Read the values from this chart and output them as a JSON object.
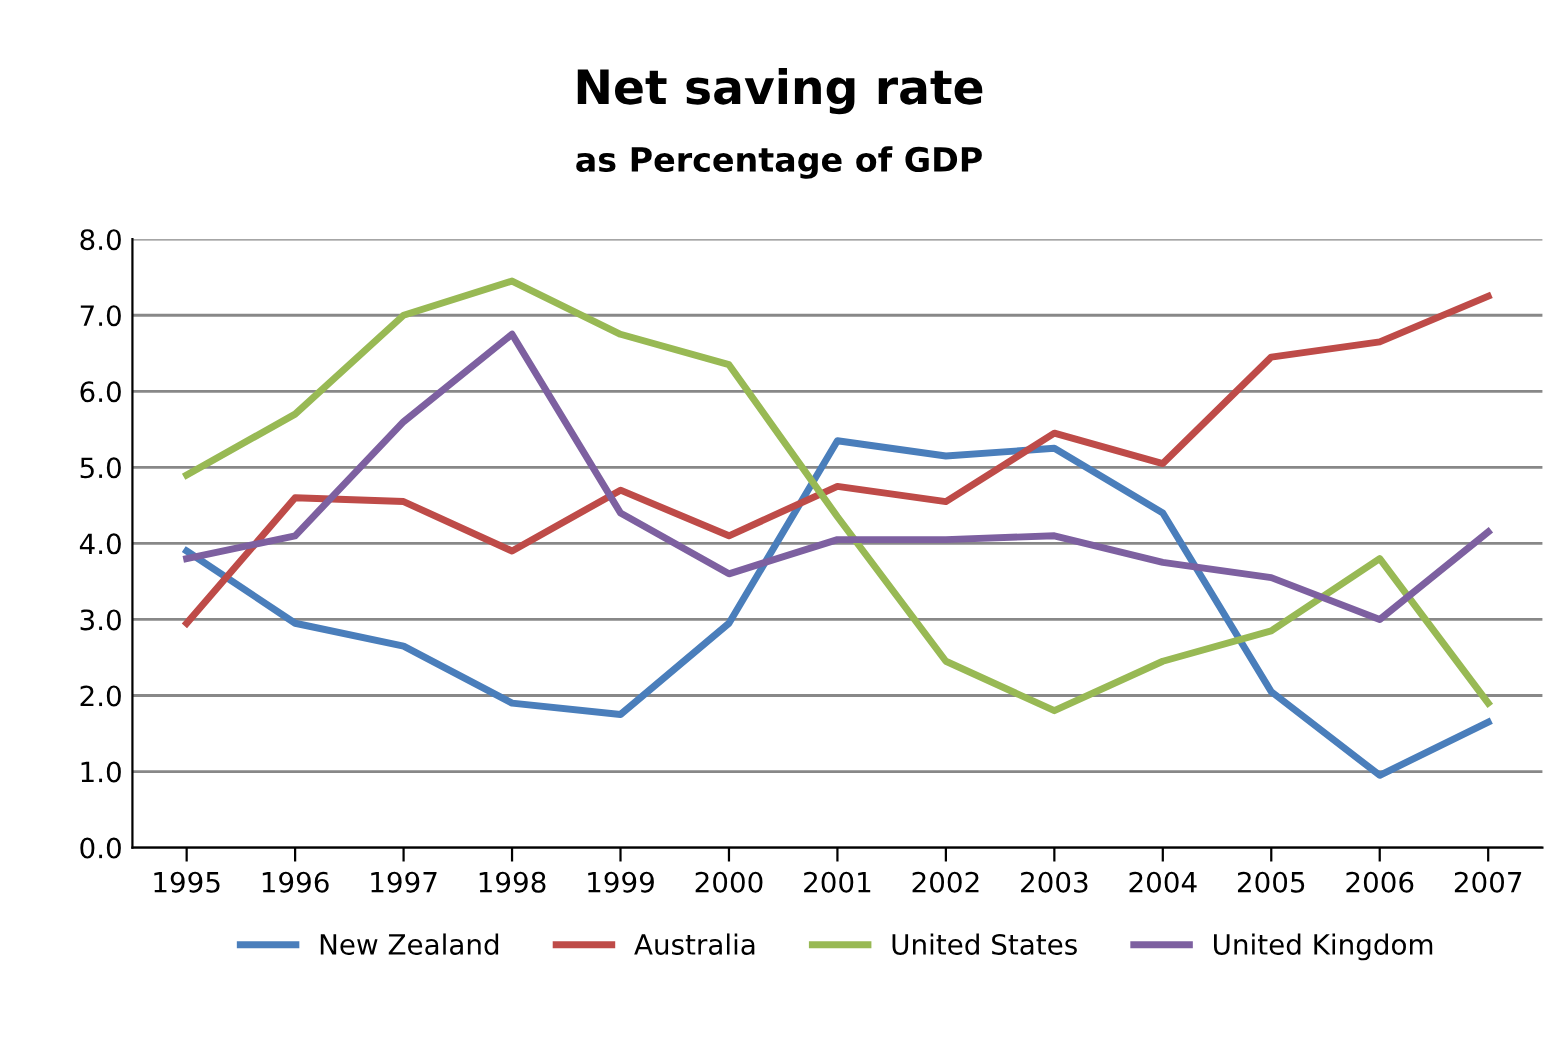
{
  "chart_data": {
    "type": "line",
    "title": "Net saving rate",
    "subtitle": "as Percentage of GDP",
    "categories": [
      "1995",
      "1996",
      "1997",
      "1998",
      "1999",
      "2000",
      "2001",
      "2002",
      "2003",
      "2004",
      "2005",
      "2006",
      "2007"
    ],
    "series": [
      {
        "name": "New Zealand",
        "color": "#4a7ebb",
        "values": [
          3.9,
          2.95,
          2.65,
          1.9,
          1.75,
          2.95,
          5.35,
          5.15,
          5.25,
          4.4,
          2.05,
          0.95,
          1.65
        ]
      },
      {
        "name": "Australia",
        "color": "#be4b48",
        "values": [
          2.95,
          4.6,
          4.55,
          3.9,
          4.7,
          4.1,
          4.75,
          4.55,
          5.45,
          5.05,
          6.45,
          6.65,
          7.25
        ]
      },
      {
        "name": "United States",
        "color": "#98b954",
        "values": [
          4.9,
          5.7,
          7.0,
          7.45,
          6.75,
          6.35,
          4.35,
          2.45,
          1.8,
          2.45,
          2.85,
          3.8,
          1.9
        ]
      },
      {
        "name": "United Kingdom",
        "color": "#7d60a0",
        "values": [
          3.8,
          4.1,
          5.6,
          6.75,
          4.4,
          3.6,
          4.05,
          4.05,
          4.1,
          3.75,
          3.55,
          3.0,
          4.15
        ]
      }
    ],
    "ylim": [
      0,
      8
    ],
    "yticks": [
      {
        "value": 0,
        "label": "0.0"
      },
      {
        "value": 1,
        "label": "1.0"
      },
      {
        "value": 2,
        "label": "2.0"
      },
      {
        "value": 3,
        "label": "3.0"
      },
      {
        "value": 4,
        "label": "4.0"
      },
      {
        "value": 5,
        "label": "5.0"
      },
      {
        "value": 6,
        "label": "6.0"
      },
      {
        "value": 7,
        "label": "7.0"
      },
      {
        "value": 8,
        "label": "8.0"
      }
    ],
    "grid": "y",
    "legend": "bottom",
    "marker": "none",
    "line_style": "solid"
  }
}
